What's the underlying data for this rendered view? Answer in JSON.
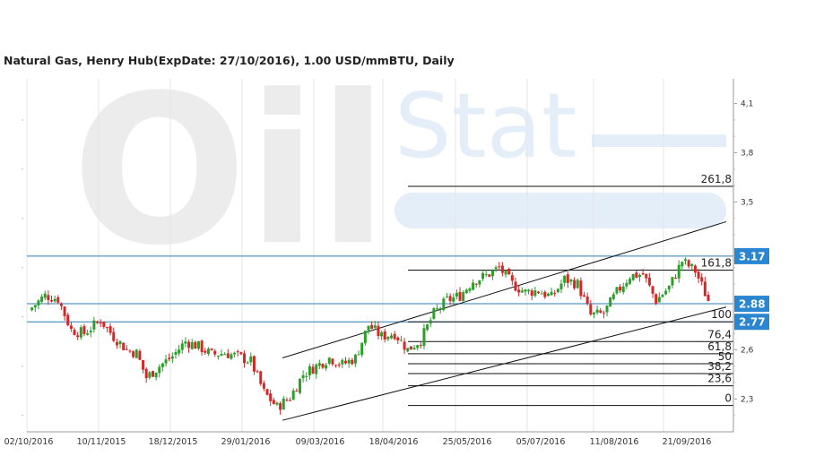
{
  "title": "Natural Gas, Henry Hub(ExpDate: 27/10/2016), 1.00 USD/mmBTU, Daily",
  "watermark": {
    "text_left": "Oil",
    "text_right": "Stat"
  },
  "colors": {
    "up": "#2aa02a",
    "down": "#d62728",
    "hline": "#2a7db5",
    "tag": "#2a86d0",
    "grid": "#e6e6e6",
    "watermark": "#ececec",
    "watermark_blue": "#e3eef8"
  },
  "chart_data": {
    "type": "candlestick",
    "title": "Natural Gas, Henry Hub(ExpDate: 27/10/2016), 1.00 USD/mmBTU, Daily",
    "x_ticks": [
      "02/10/2016",
      "10/11/2015",
      "18/12/2015",
      "29/01/2016",
      "09/03/2016",
      "18/04/2016",
      "25/05/2016",
      "05/07/2016",
      "11/08/2016",
      "21/09/2016"
    ],
    "y_ticks": [
      "4,1",
      "3,8",
      "3,5",
      "2,6",
      "2,3"
    ],
    "ylim": [
      2.1,
      4.25
    ],
    "grid": true,
    "price_levels": [
      {
        "label": "3.17",
        "value": 3.17
      },
      {
        "label": "2.88",
        "value": 2.88
      },
      {
        "label": "2.77",
        "value": 2.77
      }
    ],
    "fibonacci": {
      "low": 2.26,
      "high": 2.77,
      "levels": [
        {
          "label": "261,8",
          "pct": 261.8
        },
        {
          "label": "161,8",
          "pct": 161.8
        },
        {
          "label": "100",
          "pct": 100
        },
        {
          "label": "76,4",
          "pct": 76.4
        },
        {
          "label": "61,8",
          "pct": 61.8
        },
        {
          "label": "50",
          "pct": 50
        },
        {
          "label": "38,2",
          "pct": 38.2
        },
        {
          "label": "23,6",
          "pct": 23.6
        },
        {
          "label": "0",
          "pct": 0
        }
      ]
    },
    "channel": {
      "upper": [
        [
          0,
          2.55
        ],
        [
          1,
          3.38
        ]
      ],
      "lower": [
        [
          0,
          2.17
        ],
        [
          1,
          2.86
        ]
      ]
    },
    "price_path": [
      [
        0,
        2.84
      ],
      [
        5,
        2.93
      ],
      [
        9,
        2.91
      ],
      [
        13,
        2.72
      ],
      [
        17,
        2.7
      ],
      [
        22,
        2.78
      ],
      [
        26,
        2.68
      ],
      [
        30,
        2.6
      ],
      [
        33,
        2.58
      ],
      [
        36,
        2.43
      ],
      [
        40,
        2.5
      ],
      [
        44,
        2.56
      ],
      [
        48,
        2.65
      ],
      [
        52,
        2.62
      ],
      [
        56,
        2.57
      ],
      [
        60,
        2.58
      ],
      [
        64,
        2.56
      ],
      [
        68,
        2.53
      ],
      [
        72,
        2.34
      ],
      [
        76,
        2.25
      ],
      [
        80,
        2.31
      ],
      [
        84,
        2.45
      ],
      [
        88,
        2.5
      ],
      [
        92,
        2.55
      ],
      [
        96,
        2.51
      ],
      [
        100,
        2.55
      ],
      [
        104,
        2.75
      ],
      [
        108,
        2.68
      ],
      [
        112,
        2.7
      ],
      [
        116,
        2.6
      ],
      [
        120,
        2.66
      ],
      [
        124,
        2.82
      ],
      [
        128,
        2.9
      ],
      [
        132,
        2.93
      ],
      [
        136,
        3.02
      ],
      [
        140,
        3.05
      ],
      [
        144,
        3.1
      ],
      [
        148,
        3.0
      ],
      [
        152,
        2.95
      ],
      [
        156,
        2.96
      ],
      [
        160,
        2.92
      ],
      [
        164,
        3.03
      ],
      [
        168,
        3.0
      ],
      [
        172,
        2.81
      ],
      [
        176,
        2.82
      ],
      [
        180,
        2.95
      ],
      [
        184,
        3.05
      ],
      [
        188,
        3.06
      ],
      [
        192,
        2.9
      ],
      [
        196,
        2.98
      ],
      [
        200,
        3.14
      ],
      [
        204,
        3.08
      ],
      [
        208,
        2.9
      ]
    ]
  }
}
